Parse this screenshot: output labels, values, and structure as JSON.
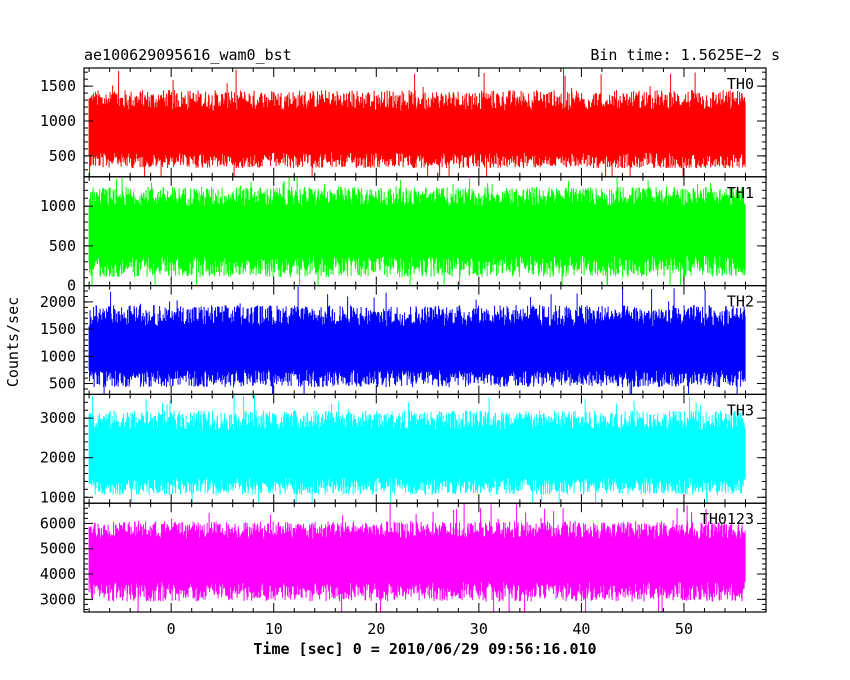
{
  "chart_data": {
    "type": "line",
    "title": "ae100629095616_wam0_bst",
    "subtitle": "Bin time: 1.5625E−2 s",
    "xlabel": "Time [sec] 0 = 2010/06/29 09:56:16.010",
    "ylabel": "Counts/sec",
    "xlim": [
      -8.5,
      58
    ],
    "x_range_data": [
      -8,
      56
    ],
    "xticks": [
      0,
      10,
      20,
      30,
      40,
      50
    ],
    "grid": false,
    "panels": [
      {
        "name": "TH0",
        "color": "#ff0000",
        "ylim": [
          200,
          1760
        ],
        "yticks": [
          500,
          1000,
          1500
        ],
        "band": {
          "min_typical": 320,
          "dense_low": 550,
          "dense_high": 1150,
          "max_typical": 1450,
          "spike_max": 1760
        }
      },
      {
        "name": "TH1",
        "color": "#00ff00",
        "ylim": [
          0,
          1370
        ],
        "yticks": [
          0,
          500,
          1000
        ],
        "band": {
          "min_typical": 100,
          "dense_low": 380,
          "dense_high": 1000,
          "max_typical": 1250,
          "spike_max": 1370
        }
      },
      {
        "name": "TH2",
        "color": "#0000ff",
        "ylim": [
          300,
          2300
        ],
        "yticks": [
          500,
          1000,
          1500,
          2000
        ],
        "band": {
          "min_typical": 430,
          "dense_low": 750,
          "dense_high": 1550,
          "max_typical": 1950,
          "spike_max": 2300
        }
      },
      {
        "name": "TH3",
        "color": "#00ffff",
        "ylim": [
          850,
          3600
        ],
        "yticks": [
          1000,
          2000,
          3000
        ],
        "band": {
          "min_typical": 1050,
          "dense_low": 1500,
          "dense_high": 2700,
          "max_typical": 3200,
          "spike_max": 3600
        }
      },
      {
        "name": "TH0123",
        "color": "#ff00ff",
        "ylim": [
          2500,
          6800
        ],
        "yticks": [
          3000,
          4000,
          5000,
          6000
        ],
        "band": {
          "min_typical": 2900,
          "dense_low": 3700,
          "dense_high": 5400,
          "max_typical": 6100,
          "spike_max": 6800
        }
      }
    ]
  }
}
